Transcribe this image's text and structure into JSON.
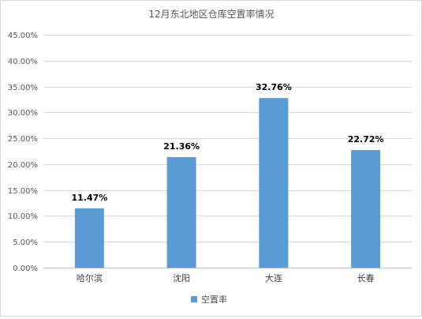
{
  "chart_data": {
    "type": "bar",
    "title": "12月东北地区仓库空置率情况",
    "categories": [
      "哈尔滨",
      "沈阳",
      "大连",
      "长春"
    ],
    "series": [
      {
        "name": "空置率",
        "values": [
          11.47,
          21.36,
          32.76,
          22.72
        ],
        "data_labels": [
          "11.47%",
          "21.36%",
          "32.76%",
          "22.72%"
        ],
        "color": "#5b9bd5"
      }
    ],
    "ylim": [
      0,
      45
    ],
    "y_ticks": [
      "0.00%",
      "5.00%",
      "10.00%",
      "15.00%",
      "20.00%",
      "25.00%",
      "30.00%",
      "35.00%",
      "40.00%",
      "45.00%"
    ],
    "y_tick_values": [
      0,
      5,
      10,
      15,
      20,
      25,
      30,
      35,
      40,
      45
    ],
    "grid": true,
    "legend_position": "bottom",
    "xlabel": "",
    "ylabel": ""
  }
}
